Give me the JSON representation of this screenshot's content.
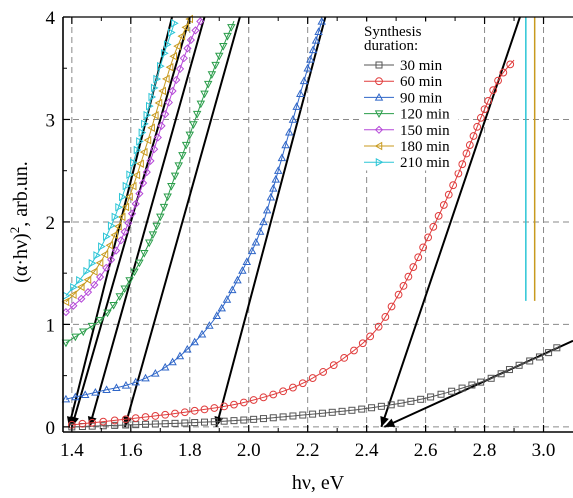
{
  "chart_data": {
    "type": "line",
    "xlabel": "hν, eV",
    "ylabel_main": "(α·hν)",
    "ylabel_sup": "2",
    "ylabel_unit": ", arb.un.",
    "xlim": [
      1.37,
      3.1
    ],
    "ylim": [
      -0.05,
      4.0
    ],
    "x_ticks": [
      1.4,
      1.6,
      1.8,
      2.0,
      2.2,
      2.4,
      2.6,
      2.8,
      3.0
    ],
    "x_tick_labels": [
      "1.4",
      "1.6",
      "1.8",
      "2.0",
      "2.2",
      "2.4",
      "2.6",
      "2.8",
      "3.0"
    ],
    "y_ticks": [
      0,
      1,
      2,
      3,
      4
    ],
    "y_tick_labels": [
      "0",
      "1",
      "2",
      "3",
      "4"
    ],
    "grid": true,
    "legend": {
      "title_lines": [
        "Synthesis",
        "duration:"
      ],
      "position": "top-right"
    },
    "series": [
      {
        "name": "30 min",
        "color": "#555555",
        "marker": "square",
        "x": [
          1.4,
          1.6,
          1.8,
          2.0,
          2.2,
          2.4,
          2.6,
          2.8,
          2.9,
          3.0,
          3.05
        ],
        "y": [
          0.0,
          0.02,
          0.04,
          0.07,
          0.12,
          0.18,
          0.28,
          0.45,
          0.58,
          0.7,
          0.78
        ]
      },
      {
        "name": "60 min",
        "color": "#e03c3c",
        "marker": "circle",
        "x": [
          1.4,
          1.6,
          1.8,
          2.0,
          2.2,
          2.4,
          2.5,
          2.6,
          2.7,
          2.75,
          2.8,
          2.85,
          2.9
        ],
        "y": [
          0.02,
          0.08,
          0.15,
          0.25,
          0.45,
          0.85,
          1.25,
          1.8,
          2.4,
          2.75,
          3.1,
          3.4,
          3.58
        ]
      },
      {
        "name": "90 min",
        "color": "#2f66c8",
        "marker": "triangle-up",
        "x": [
          1.38,
          1.5,
          1.6,
          1.7,
          1.8,
          1.9,
          2.0,
          2.05,
          2.1,
          2.15,
          2.2,
          2.25
        ],
        "y": [
          0.27,
          0.35,
          0.42,
          0.55,
          0.78,
          1.12,
          1.65,
          2.0,
          2.5,
          3.0,
          3.5,
          3.98
        ]
      },
      {
        "name": "120 min",
        "color": "#2a9d4a",
        "marker": "triangle-down",
        "x": [
          1.38,
          1.45,
          1.5,
          1.55,
          1.6,
          1.65,
          1.7,
          1.75,
          1.8,
          1.85,
          1.9,
          1.95
        ],
        "y": [
          0.82,
          0.95,
          1.05,
          1.22,
          1.45,
          1.72,
          2.05,
          2.45,
          2.85,
          3.25,
          3.62,
          3.96
        ]
      },
      {
        "name": "150 min",
        "color": "#b548d8",
        "marker": "diamond",
        "x": [
          1.38,
          1.45,
          1.5,
          1.55,
          1.6,
          1.65,
          1.7,
          1.75,
          1.8,
          1.84
        ],
        "y": [
          1.12,
          1.3,
          1.48,
          1.72,
          2.05,
          2.45,
          2.9,
          3.35,
          3.75,
          3.98
        ]
      },
      {
        "name": "180 min",
        "color": "#c89a1e",
        "marker": "triangle-left",
        "x": [
          1.38,
          1.45,
          1.5,
          1.55,
          1.6,
          1.65,
          1.7,
          1.75,
          1.8
        ],
        "y": [
          1.22,
          1.42,
          1.62,
          1.9,
          2.28,
          2.72,
          3.2,
          3.65,
          3.98
        ]
      },
      {
        "name": "210 min",
        "color": "#2cc5d6",
        "marker": "triangle-right",
        "x": [
          1.38,
          1.45,
          1.5,
          1.55,
          1.6,
          1.65,
          1.7,
          1.75
        ],
        "y": [
          1.28,
          1.52,
          1.76,
          2.08,
          2.5,
          3.0,
          3.52,
          3.96
        ]
      }
    ],
    "fit_lines": [
      {
        "x1": 2.46,
        "y1": 0.0,
        "x2": 3.1,
        "y2": 0.84
      },
      {
        "x1": 2.45,
        "y1": 0.0,
        "x2": 2.92,
        "y2": 4.0
      },
      {
        "x1": 1.89,
        "y1": 0.0,
        "x2": 2.26,
        "y2": 4.0
      },
      {
        "x1": 1.58,
        "y1": 0.0,
        "x2": 1.97,
        "y2": 4.0
      },
      {
        "x1": 1.46,
        "y1": 0.0,
        "x2": 1.85,
        "y2": 4.0
      },
      {
        "x1": 1.4,
        "y1": 0.0,
        "x2": 1.8,
        "y2": 4.0
      },
      {
        "x1": 1.39,
        "y1": 0.0,
        "x2": 1.74,
        "y2": 4.0
      }
    ],
    "vertical_segments": [
      {
        "x": 2.94,
        "y1": 1.23,
        "y2": 4.0,
        "color": "#2cc5d6"
      },
      {
        "x": 2.97,
        "y1": 1.23,
        "y2": 4.0,
        "color": "#c89a1e"
      }
    ]
  }
}
